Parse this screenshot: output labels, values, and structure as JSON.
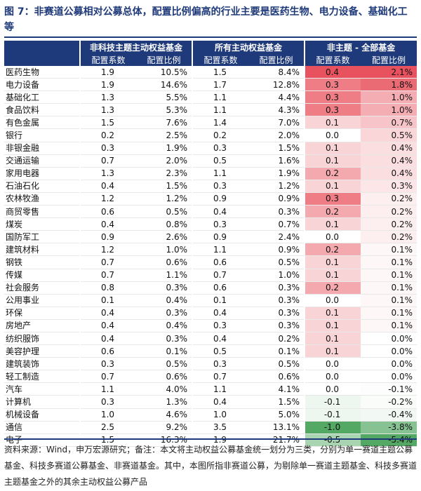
{
  "title": "图 7：非赛道公募相对公募总体，配置比例偏高的行业主要是医药生物、电力设备、基础化工等",
  "table": {
    "groups": [
      "非科技主题主动权益基金",
      "所有主动权益基金",
      "非主题 - 全部基金"
    ],
    "subheaders": [
      "配置系数",
      "配置比例",
      "配置系数",
      "配置比例",
      "配置系数",
      "配置比例"
    ],
    "rows": [
      [
        "医药生物",
        "1.9",
        "10.5%",
        "1.5",
        "8.4%",
        "0.4",
        "2.1%"
      ],
      [
        "电力设备",
        "1.9",
        "14.6%",
        "1.7",
        "12.8%",
        "0.3",
        "1.8%"
      ],
      [
        "基础化工",
        "1.3",
        "5.5%",
        "1.1",
        "4.4%",
        "0.3",
        "1.0%"
      ],
      [
        "食品饮料",
        "1.3",
        "5.3%",
        "1.1",
        "4.3%",
        "0.3",
        "1.0%"
      ],
      [
        "有色金属",
        "1.5",
        "7.6%",
        "1.4",
        "7.0%",
        "0.1",
        "0.7%"
      ],
      [
        "银行",
        "0.2",
        "2.5%",
        "0.2",
        "2.0%",
        "0.0",
        "0.5%"
      ],
      [
        "非银金融",
        "0.3",
        "1.9%",
        "0.3",
        "1.5%",
        "0.1",
        "0.4%"
      ],
      [
        "交通运输",
        "0.7",
        "2.0%",
        "0.5",
        "1.6%",
        "0.1",
        "0.4%"
      ],
      [
        "家用电器",
        "1.3",
        "2.3%",
        "1.1",
        "1.9%",
        "0.2",
        "0.4%"
      ],
      [
        "石油石化",
        "0.4",
        "1.5%",
        "0.3",
        "1.2%",
        "0.1",
        "0.3%"
      ],
      [
        "农林牧渔",
        "1.2",
        "1.2%",
        "0.9",
        "0.9%",
        "0.3",
        "0.2%"
      ],
      [
        "商贸零售",
        "0.6",
        "0.5%",
        "0.4",
        "0.3%",
        "0.2",
        "0.2%"
      ],
      [
        "煤炭",
        "0.4",
        "0.8%",
        "0.3",
        "0.7%",
        "0.1",
        "0.2%"
      ],
      [
        "国防军工",
        "0.9",
        "2.6%",
        "0.9",
        "2.4%",
        "0.0",
        "0.2%"
      ],
      [
        "建筑材料",
        "1.2",
        "1.0%",
        "1.1",
        "0.9%",
        "0.2",
        "0.1%"
      ],
      [
        "钢铁",
        "0.7",
        "0.6%",
        "0.6",
        "0.5%",
        "0.1",
        "0.1%"
      ],
      [
        "传媒",
        "0.7",
        "1.1%",
        "0.7",
        "1.0%",
        "0.1",
        "0.1%"
      ],
      [
        "社会服务",
        "0.8",
        "0.3%",
        "0.6",
        "0.3%",
        "0.2",
        "0.1%"
      ],
      [
        "公用事业",
        "0.1",
        "0.4%",
        "0.1",
        "0.3%",
        "0.0",
        "0.1%"
      ],
      [
        "环保",
        "0.4",
        "0.3%",
        "0.4",
        "0.3%",
        "0.1",
        "0.1%"
      ],
      [
        "房地产",
        "0.4",
        "0.4%",
        "0.3",
        "0.3%",
        "0.1",
        "0.1%"
      ],
      [
        "纺织服饰",
        "0.4",
        "0.3%",
        "0.4",
        "0.2%",
        "0.1",
        "0.0%"
      ],
      [
        "美容护理",
        "0.6",
        "0.1%",
        "0.5",
        "0.1%",
        "0.1",
        "0.0%"
      ],
      [
        "建筑装饰",
        "0.3",
        "0.5%",
        "0.3",
        "0.5%",
        "0.0",
        "0.0%"
      ],
      [
        "轻工制造",
        "0.7",
        "0.6%",
        "0.7",
        "0.6%",
        "0.0",
        "0.0%"
      ],
      [
        "汽车",
        "1.1",
        "4.0%",
        "1.1",
        "4.1%",
        "0.0",
        "-0.1%"
      ],
      [
        "计算机",
        "0.3",
        "1.3%",
        "0.4",
        "1.5%",
        "-0.1",
        "-0.2%"
      ],
      [
        "机械设备",
        "1.0",
        "4.6%",
        "1.0",
        "5.0%",
        "-0.1",
        "-0.4%"
      ],
      [
        "通信",
        "2.5",
        "9.2%",
        "3.5",
        "13.1%",
        "-1.0",
        "-3.8%"
      ],
      [
        "电子",
        "1.5",
        "16.3%",
        "1.9",
        "21.7%",
        "-0.5",
        "-5.4%"
      ]
    ]
  },
  "note": "资料来源：Wind，申万宏源研究；备注：本文将主动权益公募基金统一划分为三类，分别为单一赛道主题公募基金、科技多赛道公募基金、非赛道基金。其中，本图所指非赛道公募，为剔除单一赛道主题基金、科技多赛道主题基金之外的其余主动权益公募产品",
  "colors": {
    "header": "#1f3a7a",
    "positive": "#e8525e",
    "negative": "#53a864"
  }
}
